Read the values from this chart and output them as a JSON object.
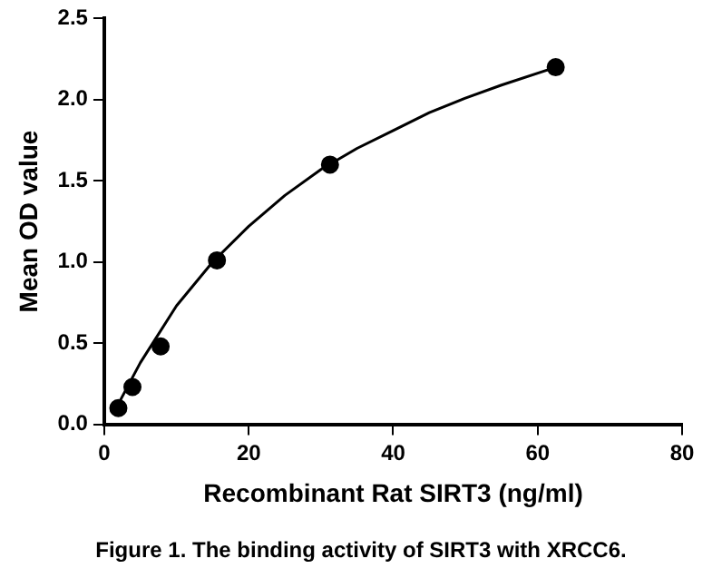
{
  "chart_data": {
    "type": "scatter",
    "xlabel": "Recombinant Rat SIRT3 (ng/ml)",
    "ylabel": "Mean OD value",
    "annotations": [
      "Figure 1. The binding activity of SIRT3 with XRCC6."
    ],
    "series": [
      {
        "color": "#000000",
        "marker": "circle",
        "x": [
          1.95,
          3.9,
          7.8,
          15.6,
          31.25,
          62.5
        ],
        "values": [
          0.1,
          0.23,
          0.48,
          1.01,
          1.6,
          2.2
        ]
      },
      {
        "type": "line",
        "color": "#000000",
        "marker": "none",
        "x": [
          2,
          5,
          10,
          15,
          20,
          25,
          30,
          35,
          40,
          45,
          50,
          55,
          62.5
        ],
        "values": [
          0.13,
          0.38,
          0.73,
          1.0,
          1.22,
          1.41,
          1.57,
          1.7,
          1.81,
          1.92,
          2.01,
          2.09,
          2.2
        ]
      }
    ],
    "xlim": [
      0,
      80
    ],
    "xticks": [
      0,
      20,
      40,
      60,
      80
    ],
    "ylim": [
      0,
      2.5
    ],
    "yticks": [
      {
        "value": 0,
        "label": "0.0"
      },
      0.5,
      {
        "value": 1,
        "label": "1.0"
      },
      1.5,
      {
        "value": 2,
        "label": "2.0"
      },
      2.5
    ],
    "grid": false,
    "legend": false
  }
}
